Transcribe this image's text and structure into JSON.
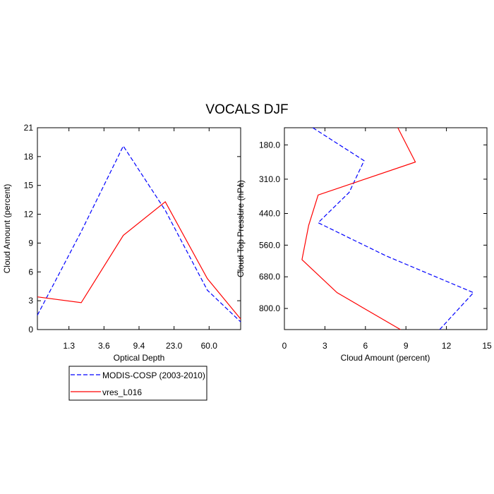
{
  "title": "VOCALS DJF",
  "legend": {
    "entries": [
      {
        "label": "MODIS-COSP (2003-2010)",
        "color": "#0000ff",
        "dash": "dashed"
      },
      {
        "label": "vres_L016",
        "color": "#ff0000",
        "dash": "solid"
      }
    ]
  },
  "chart_data": [
    {
      "type": "line",
      "xlabel": "Optical Depth",
      "ylabel": "Cloud Amount (percent)",
      "x_tick_labels": [
        "1.3",
        "3.6",
        "9.4",
        "23.0",
        "60.0"
      ],
      "x_tick_positions": [
        1,
        2,
        3,
        4,
        5
      ],
      "xlim": [
        0.1,
        5.9
      ],
      "ylim": [
        0,
        21
      ],
      "y_ticks": [
        0,
        3,
        6,
        9,
        12,
        15,
        18,
        21
      ],
      "series": [
        {
          "name": "MODIS-COSP (2003-2010)",
          "color": "#0000ff",
          "dash": "dashed",
          "x": [
            0.1,
            1.35,
            2.55,
            3.75,
            4.95,
            5.9
          ],
          "y": [
            1.5,
            10.2,
            19.1,
            12.4,
            4.1,
            0.8
          ]
        },
        {
          "name": "vres_L016",
          "color": "#ff0000",
          "dash": "solid",
          "x": [
            0.1,
            1.35,
            2.55,
            3.75,
            4.95,
            5.9
          ],
          "y": [
            3.4,
            2.8,
            9.8,
            13.3,
            5.3,
            1.1
          ]
        }
      ]
    },
    {
      "type": "line",
      "xlabel": "Cloud Amount (percent)",
      "ylabel": "Cloud Top Pressure (hPa)",
      "xlim": [
        0,
        15
      ],
      "x_ticks": [
        0,
        3,
        6,
        9,
        12,
        15
      ],
      "ylim": [
        880,
        115
      ],
      "y_inverted": true,
      "y_ticks": [
        180,
        310,
        440,
        560,
        680,
        800
      ],
      "y_tick_labels": [
        "180.0",
        "310.0",
        "440.0",
        "560.0",
        "680.0",
        "800.0"
      ],
      "series": [
        {
          "name": "MODIS-COSP (2003-2010)",
          "color": "#0000ff",
          "dash": "dashed",
          "x": [
            2.1,
            5.9,
            4.8,
            2.5,
            7.5,
            14.0,
            11.5
          ],
          "y": [
            115,
            240,
            360,
            475,
            600,
            740,
            880
          ]
        },
        {
          "name": "vres_L016",
          "color": "#ff0000",
          "dash": "solid",
          "x": [
            8.4,
            9.7,
            2.5,
            1.8,
            1.3,
            3.9,
            8.6
          ],
          "y": [
            115,
            245,
            370,
            485,
            615,
            740,
            880
          ]
        }
      ]
    }
  ]
}
